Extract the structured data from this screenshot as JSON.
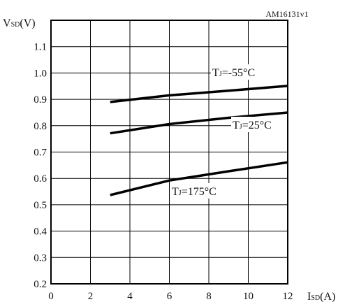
{
  "code_label": "AM16131v1",
  "chart_data": {
    "type": "line",
    "ylabel": {
      "main": "V",
      "sub": "SD",
      "unit": "(V)"
    },
    "xlabel": {
      "main": "I",
      "sub": "SD",
      "unit": "(A)"
    },
    "xlim": [
      0,
      12
    ],
    "ylim": [
      0.2,
      1.2
    ],
    "x_ticks": [
      "0",
      "2",
      "4",
      "6",
      "8",
      "10",
      "12"
    ],
    "y_ticks": [
      "0.2",
      "0.3",
      "0.4",
      "0.5",
      "0.6",
      "0.7",
      "0.8",
      "0.9",
      "1.0",
      "1.1"
    ],
    "grid": true,
    "series": [
      {
        "name": {
          "main": "T",
          "sub": "J",
          "rest": "=-55°C"
        },
        "x": [
          3,
          6,
          9,
          12
        ],
        "y": [
          0.89,
          0.915,
          0.933,
          0.951
        ]
      },
      {
        "name": {
          "main": "T",
          "sub": "J",
          "rest": "=25°C"
        },
        "x": [
          3,
          6,
          9,
          12
        ],
        "y": [
          0.771,
          0.806,
          0.83,
          0.85
        ]
      },
      {
        "name": {
          "main": "T",
          "sub": "J",
          "rest": "=175°C"
        },
        "x": [
          3,
          6,
          9,
          12
        ],
        "y": [
          0.537,
          0.592,
          0.627,
          0.661
        ]
      }
    ]
  }
}
